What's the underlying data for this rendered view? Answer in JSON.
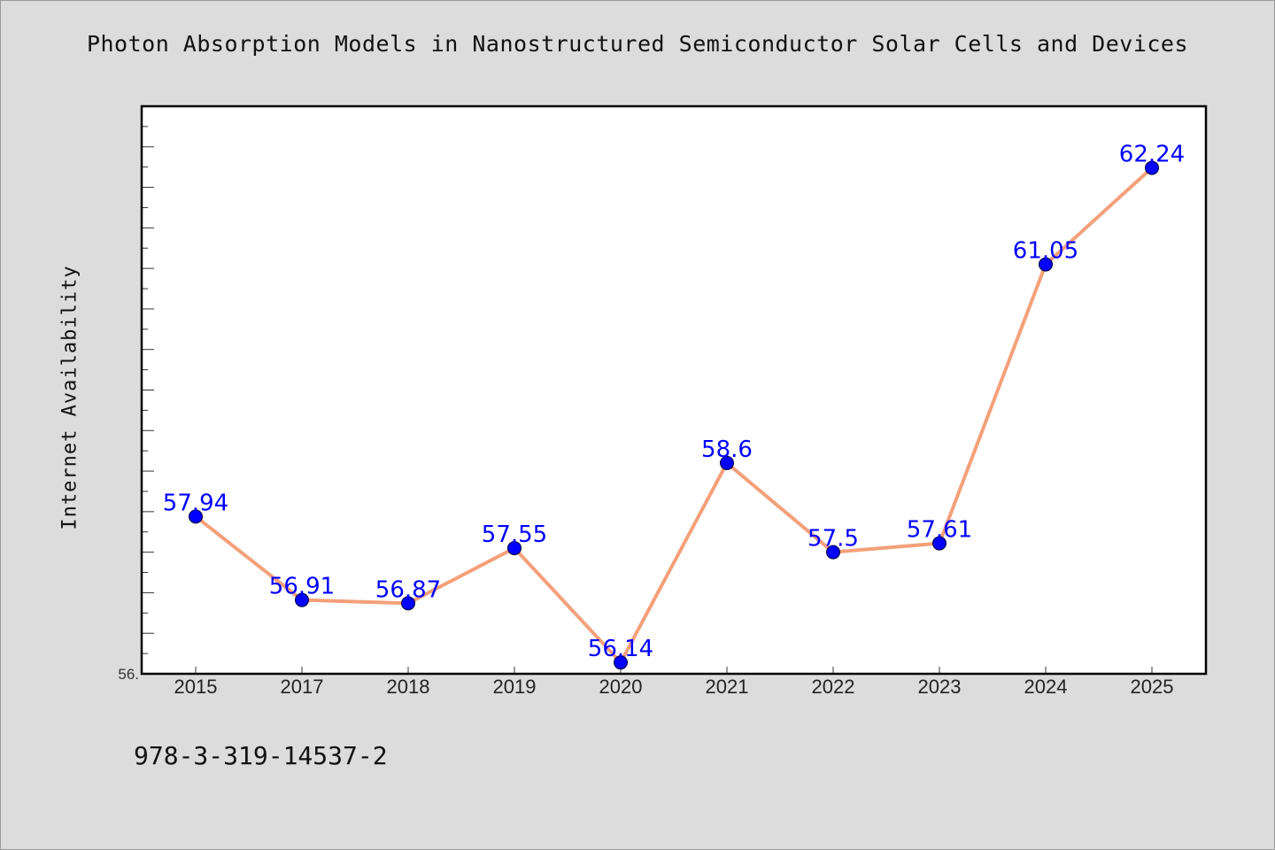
{
  "chart_data": {
    "type": "line",
    "title": "Photon Absorption Models in Nanostructured Semiconductor Solar Cells and Devices",
    "ylabel": "Internet Availability",
    "xlabel": "",
    "categories": [
      "2015",
      "2017",
      "2018",
      "2019",
      "2020",
      "2021",
      "2022",
      "2023",
      "2024",
      "2025"
    ],
    "series": [
      {
        "values": [
          57.94,
          56.91,
          56.87,
          57.55,
          56.14,
          58.6,
          57.5,
          57.61,
          61.05,
          62.24
        ],
        "labels": [
          "57.94",
          "56.91",
          "56.87",
          "57.55",
          "56.14",
          "58.6",
          "57.5",
          "57.61",
          "61.05",
          "62.24"
        ]
      }
    ],
    "ylim": [
      56.0,
      63.0
    ],
    "y_tick_labels": [
      "56."
    ],
    "grid": false,
    "line_color": "#f4a07a",
    "marker_color": "#0000ff",
    "label_color": "#0000ff"
  },
  "footer": {
    "isbn": "978-3-319-14537-2"
  }
}
